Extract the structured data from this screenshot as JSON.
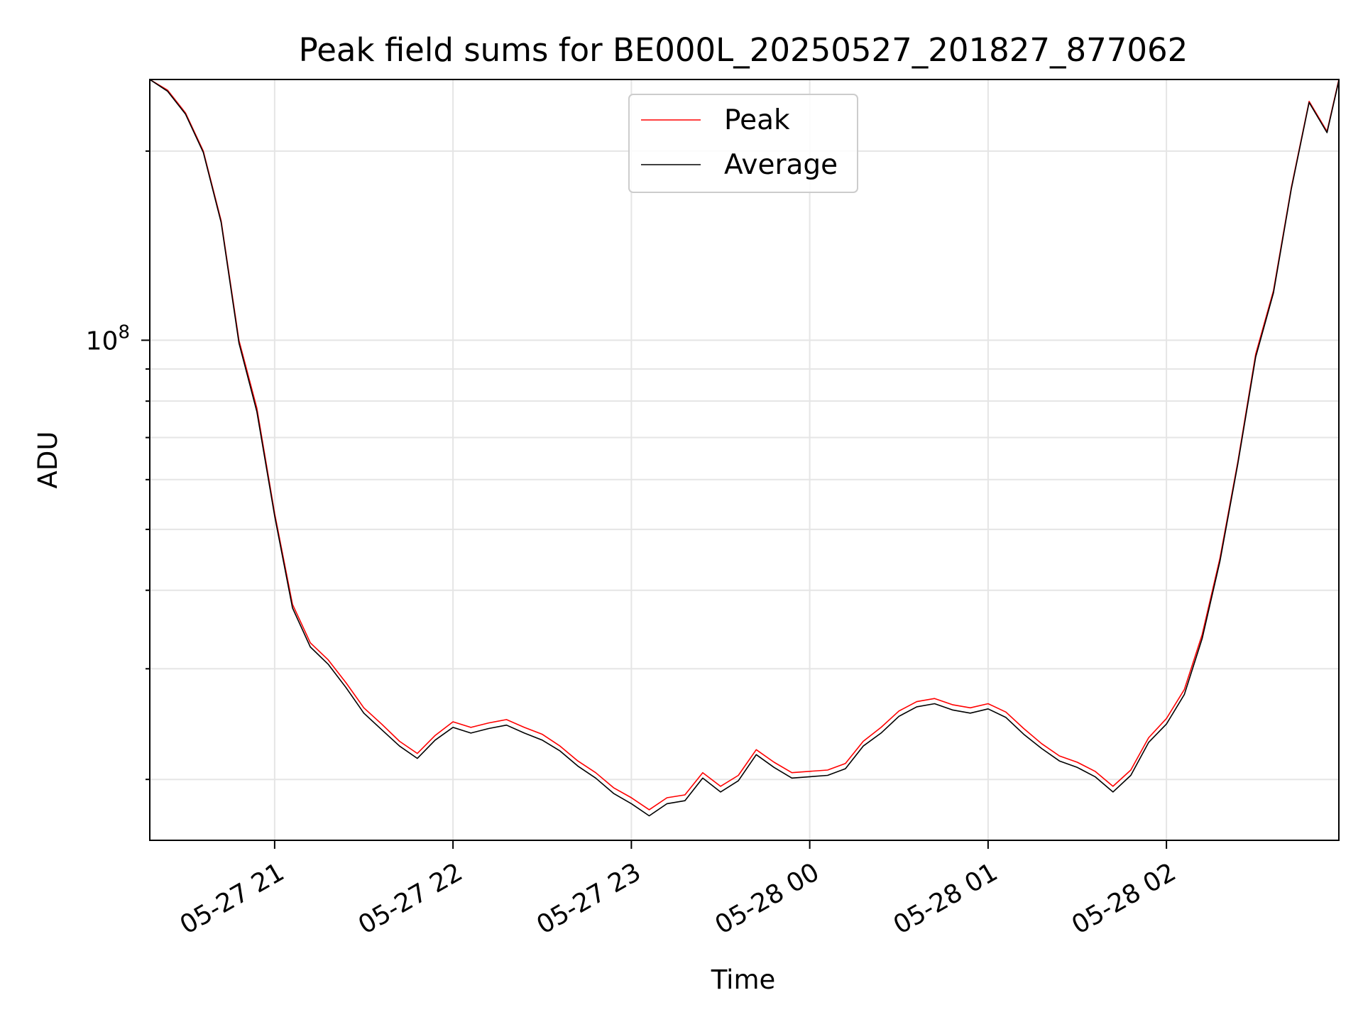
{
  "chart_data": {
    "type": "line",
    "title": "Peak field sums for BE000L_20250527_201827_877062",
    "xlabel": "Time",
    "ylabel": "ADU",
    "y_scale": "log",
    "ylim": [
      16000000,
      260000000
    ],
    "xlim": [
      "2025-05-27 20:18",
      "2025-05-28 02:58"
    ],
    "x_ticks": [
      {
        "value": "2025-05-27 21:00",
        "label": "05-27 21"
      },
      {
        "value": "2025-05-27 22:00",
        "label": "05-27 22"
      },
      {
        "value": "2025-05-27 23:00",
        "label": "05-27 23"
      },
      {
        "value": "2025-05-28 00:00",
        "label": "05-28 00"
      },
      {
        "value": "2025-05-28 01:00",
        "label": "05-28 01"
      },
      {
        "value": "2025-05-28 02:00",
        "label": "05-28 02"
      }
    ],
    "y_ticks": [
      {
        "value": 100000000,
        "label_base": "10",
        "label_exp": "8"
      }
    ],
    "grid": true,
    "legend_position": "upper center",
    "series": [
      {
        "name": "Peak",
        "color": "#ff0000",
        "points": [
          [
            "2025-05-27 20:18",
            260000000
          ],
          [
            "2025-05-27 20:24",
            250000000
          ],
          [
            "2025-05-27 20:30",
            230000000
          ],
          [
            "2025-05-27 20:36",
            200000000
          ],
          [
            "2025-05-27 20:42",
            155000000
          ],
          [
            "2025-05-27 20:48",
            100000000
          ],
          [
            "2025-05-27 20:54",
            78000000
          ],
          [
            "2025-05-27 21:00",
            53000000
          ],
          [
            "2025-05-27 21:06",
            38000000
          ],
          [
            "2025-05-27 21:12",
            33000000
          ],
          [
            "2025-05-27 21:18",
            31000000
          ],
          [
            "2025-05-27 21:24",
            28500000
          ],
          [
            "2025-05-27 21:30",
            26000000
          ],
          [
            "2025-05-27 21:36",
            24500000
          ],
          [
            "2025-05-27 21:42",
            23000000
          ],
          [
            "2025-05-27 21:48",
            22000000
          ],
          [
            "2025-05-27 21:54",
            23500000
          ],
          [
            "2025-05-27 22:00",
            24700000
          ],
          [
            "2025-05-27 22:06",
            24200000
          ],
          [
            "2025-05-27 22:12",
            24600000
          ],
          [
            "2025-05-27 22:18",
            24900000
          ],
          [
            "2025-05-27 22:24",
            24200000
          ],
          [
            "2025-05-27 22:30",
            23600000
          ],
          [
            "2025-05-27 22:36",
            22600000
          ],
          [
            "2025-05-27 22:42",
            21400000
          ],
          [
            "2025-05-27 22:48",
            20500000
          ],
          [
            "2025-05-27 22:54",
            19400000
          ],
          [
            "2025-05-27 23:00",
            18700000
          ],
          [
            "2025-05-27 23:06",
            17900000
          ],
          [
            "2025-05-27 23:12",
            18700000
          ],
          [
            "2025-05-27 23:18",
            18900000
          ],
          [
            "2025-05-27 23:24",
            20500000
          ],
          [
            "2025-05-27 23:30",
            19500000
          ],
          [
            "2025-05-27 23:36",
            20300000
          ],
          [
            "2025-05-27 23:42",
            22300000
          ],
          [
            "2025-05-27 23:48",
            21300000
          ],
          [
            "2025-05-27 23:54",
            20500000
          ],
          [
            "2025-05-28 00:00",
            20600000
          ],
          [
            "2025-05-28 00:06",
            20700000
          ],
          [
            "2025-05-28 00:12",
            21200000
          ],
          [
            "2025-05-28 00:18",
            23000000
          ],
          [
            "2025-05-28 00:24",
            24200000
          ],
          [
            "2025-05-28 00:30",
            25700000
          ],
          [
            "2025-05-28 00:36",
            26600000
          ],
          [
            "2025-05-28 00:42",
            26900000
          ],
          [
            "2025-05-28 00:48",
            26300000
          ],
          [
            "2025-05-28 00:54",
            26000000
          ],
          [
            "2025-05-28 01:00",
            26400000
          ],
          [
            "2025-05-28 01:06",
            25600000
          ],
          [
            "2025-05-28 01:12",
            24100000
          ],
          [
            "2025-05-28 01:18",
            22800000
          ],
          [
            "2025-05-28 01:24",
            21800000
          ],
          [
            "2025-05-28 01:30",
            21300000
          ],
          [
            "2025-05-28 01:36",
            20600000
          ],
          [
            "2025-05-28 01:42",
            19500000
          ],
          [
            "2025-05-28 01:48",
            20700000
          ],
          [
            "2025-05-28 01:54",
            23300000
          ],
          [
            "2025-05-28 02:00",
            25000000
          ],
          [
            "2025-05-28 02:06",
            27800000
          ],
          [
            "2025-05-28 02:12",
            34000000
          ],
          [
            "2025-05-28 02:18",
            45000000
          ],
          [
            "2025-05-28 02:24",
            64000000
          ],
          [
            "2025-05-28 02:30",
            95000000
          ],
          [
            "2025-05-28 02:36",
            120000000
          ],
          [
            "2025-05-28 02:42",
            175000000
          ],
          [
            "2025-05-28 02:48",
            240000000
          ],
          [
            "2025-05-28 02:54",
            215000000
          ],
          [
            "2025-05-28 02:58",
            260000000
          ]
        ]
      },
      {
        "name": "Average",
        "color": "#000000",
        "points": [
          [
            "2025-05-27 20:18",
            260000000
          ],
          [
            "2025-05-27 20:24",
            249000000
          ],
          [
            "2025-05-27 20:30",
            229000000
          ],
          [
            "2025-05-27 20:36",
            199000000
          ],
          [
            "2025-05-27 20:42",
            154000000
          ],
          [
            "2025-05-27 20:48",
            99000000
          ],
          [
            "2025-05-27 20:54",
            77000000
          ],
          [
            "2025-05-27 21:00",
            52500000
          ],
          [
            "2025-05-27 21:06",
            37500000
          ],
          [
            "2025-05-27 21:12",
            32500000
          ],
          [
            "2025-05-27 21:18",
            30500000
          ],
          [
            "2025-05-27 21:24",
            28000000
          ],
          [
            "2025-05-27 21:30",
            25500000
          ],
          [
            "2025-05-27 21:36",
            24000000
          ],
          [
            "2025-05-27 21:42",
            22600000
          ],
          [
            "2025-05-27 21:48",
            21600000
          ],
          [
            "2025-05-27 21:54",
            23100000
          ],
          [
            "2025-05-27 22:00",
            24200000
          ],
          [
            "2025-05-27 22:06",
            23700000
          ],
          [
            "2025-05-27 22:12",
            24100000
          ],
          [
            "2025-05-27 22:18",
            24400000
          ],
          [
            "2025-05-27 22:24",
            23700000
          ],
          [
            "2025-05-27 22:30",
            23100000
          ],
          [
            "2025-05-27 22:36",
            22200000
          ],
          [
            "2025-05-27 22:42",
            21000000
          ],
          [
            "2025-05-27 22:48",
            20100000
          ],
          [
            "2025-05-27 22:54",
            19000000
          ],
          [
            "2025-05-27 23:00",
            18300000
          ],
          [
            "2025-05-27 23:06",
            17500000
          ],
          [
            "2025-05-27 23:12",
            18300000
          ],
          [
            "2025-05-27 23:18",
            18500000
          ],
          [
            "2025-05-27 23:24",
            20100000
          ],
          [
            "2025-05-27 23:30",
            19100000
          ],
          [
            "2025-05-27 23:36",
            19900000
          ],
          [
            "2025-05-27 23:42",
            21900000
          ],
          [
            "2025-05-27 23:48",
            20900000
          ],
          [
            "2025-05-27 23:54",
            20100000
          ],
          [
            "2025-05-28 00:00",
            20200000
          ],
          [
            "2025-05-28 00:06",
            20300000
          ],
          [
            "2025-05-28 00:12",
            20800000
          ],
          [
            "2025-05-28 00:18",
            22600000
          ],
          [
            "2025-05-28 00:24",
            23700000
          ],
          [
            "2025-05-28 00:30",
            25200000
          ],
          [
            "2025-05-28 00:36",
            26100000
          ],
          [
            "2025-05-28 00:42",
            26400000
          ],
          [
            "2025-05-28 00:48",
            25800000
          ],
          [
            "2025-05-28 00:54",
            25500000
          ],
          [
            "2025-05-28 01:00",
            25900000
          ],
          [
            "2025-05-28 01:06",
            25100000
          ],
          [
            "2025-05-28 01:12",
            23600000
          ],
          [
            "2025-05-28 01:18",
            22400000
          ],
          [
            "2025-05-28 01:24",
            21400000
          ],
          [
            "2025-05-28 01:30",
            20900000
          ],
          [
            "2025-05-28 01:36",
            20200000
          ],
          [
            "2025-05-28 01:42",
            19100000
          ],
          [
            "2025-05-28 01:48",
            20300000
          ],
          [
            "2025-05-28 01:54",
            22900000
          ],
          [
            "2025-05-28 02:00",
            24500000
          ],
          [
            "2025-05-28 02:06",
            27300000
          ],
          [
            "2025-05-28 02:12",
            33500000
          ],
          [
            "2025-05-28 02:18",
            44500000
          ],
          [
            "2025-05-28 02:24",
            63500000
          ],
          [
            "2025-05-28 02:30",
            94000000
          ],
          [
            "2025-05-28 02:36",
            119000000
          ],
          [
            "2025-05-28 02:42",
            174000000
          ],
          [
            "2025-05-28 02:48",
            239000000
          ],
          [
            "2025-05-28 02:54",
            214000000
          ],
          [
            "2025-05-28 02:58",
            259000000
          ]
        ]
      }
    ]
  }
}
